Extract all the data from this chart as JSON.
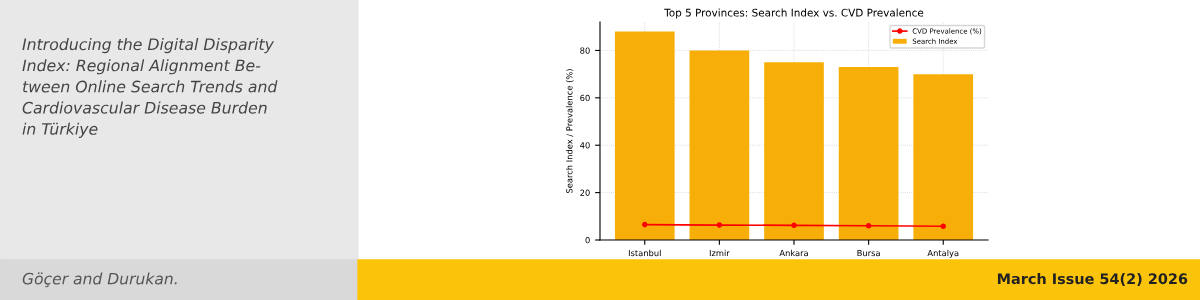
{
  "chart_data": {
    "type": "bar",
    "title": "Top 5 Provinces: Search Index vs. CVD Prevalence",
    "ylabel": "Search Index / Prevalence (%)",
    "categories": [
      "Istanbul",
      "Izmir",
      "Ankara",
      "Bursa",
      "Antalya"
    ],
    "series": [
      {
        "name": "CVD Prevalence (%)",
        "type": "line",
        "color": "#ff0000",
        "marker": "circle",
        "values": [
          6.5,
          6.3,
          6.2,
          6.0,
          5.8
        ]
      },
      {
        "name": "Search Index",
        "color": "#f8ae08",
        "values": [
          88,
          80,
          75,
          73,
          70
        ]
      }
    ],
    "ylim": [
      0,
      92
    ],
    "yticks": [
      0,
      20,
      40,
      60,
      80
    ],
    "grid": true,
    "legend": "top right",
    "annotations": [
      "Introducing the Digital Disparity\nIndex: Regional Alignment Be-\ntween Online Search Trends and\nCardiovascular Disease Burden\nin Türkiye",
      "Göçer and Durukan.",
      "March Issue 54(2) 2026"
    ]
  }
}
